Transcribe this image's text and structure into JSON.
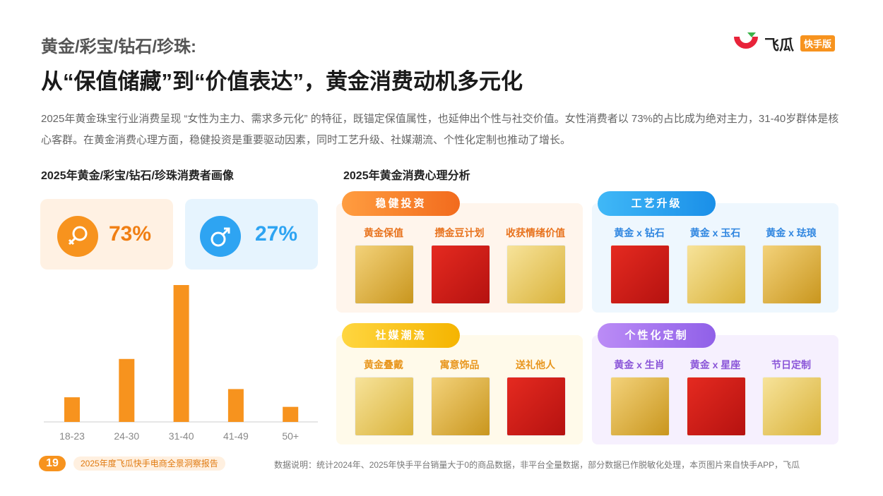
{
  "header": {
    "subtitle": "黄金/彩宝/钻石/珍珠:",
    "title": "从“保值储藏”到“价值表达”，黄金消费动机多元化"
  },
  "logo": {
    "name": "飞瓜",
    "badge": "快手版"
  },
  "intro": "2025年黄金珠宝行业消费呈现 “女性为主力、需求多元化” 的特征，既锚定保值属性，也延伸出个性与社交价值。女性消费者以 73%的占比成为绝对主力，31-40岁群体是核心客群。在黄金消费心理方面，稳健投资是重要驱动因素，同时工艺升级、社媒潮流、个性化定制也推动了增长。",
  "portrait": {
    "title": "2025年黄金/彩宝/钻石/珍珠消费者画像",
    "female": "73%",
    "male": "27%"
  },
  "chart_data": {
    "type": "bar",
    "categories": [
      "18-23",
      "24-30",
      "31-40",
      "41-49",
      "50+"
    ],
    "values": [
      9,
      23,
      50,
      12,
      5.5
    ],
    "color": "#f7931e"
  },
  "psychology": {
    "title": "2025年黄金消费心理分析",
    "groups": [
      {
        "title": "稳健投资",
        "items": [
          "黄金保值",
          "攒金豆计划",
          "收获情绪价值"
        ]
      },
      {
        "title": "工艺升级",
        "items": [
          "黄金 x 钻石",
          "黄金 x 玉石",
          "黄金 x 珐琅"
        ]
      },
      {
        "title": "社媒潮流",
        "items": [
          "黄金叠戴",
          "寓意饰品",
          "送礼他人"
        ]
      },
      {
        "title": "个性化定制",
        "items": [
          "黄金 x 生肖",
          "黄金 x 星座",
          "节日定制"
        ]
      }
    ]
  },
  "footer": {
    "page": "19",
    "report": "2025年度飞瓜快手电商全景洞察报告",
    "note": "数据说明：统计2024年、2025年快手平台销量大于0的商品数据，非平台全量数据，部分数据已作脱敏化处理，本页图片来自快手APP，飞瓜"
  }
}
